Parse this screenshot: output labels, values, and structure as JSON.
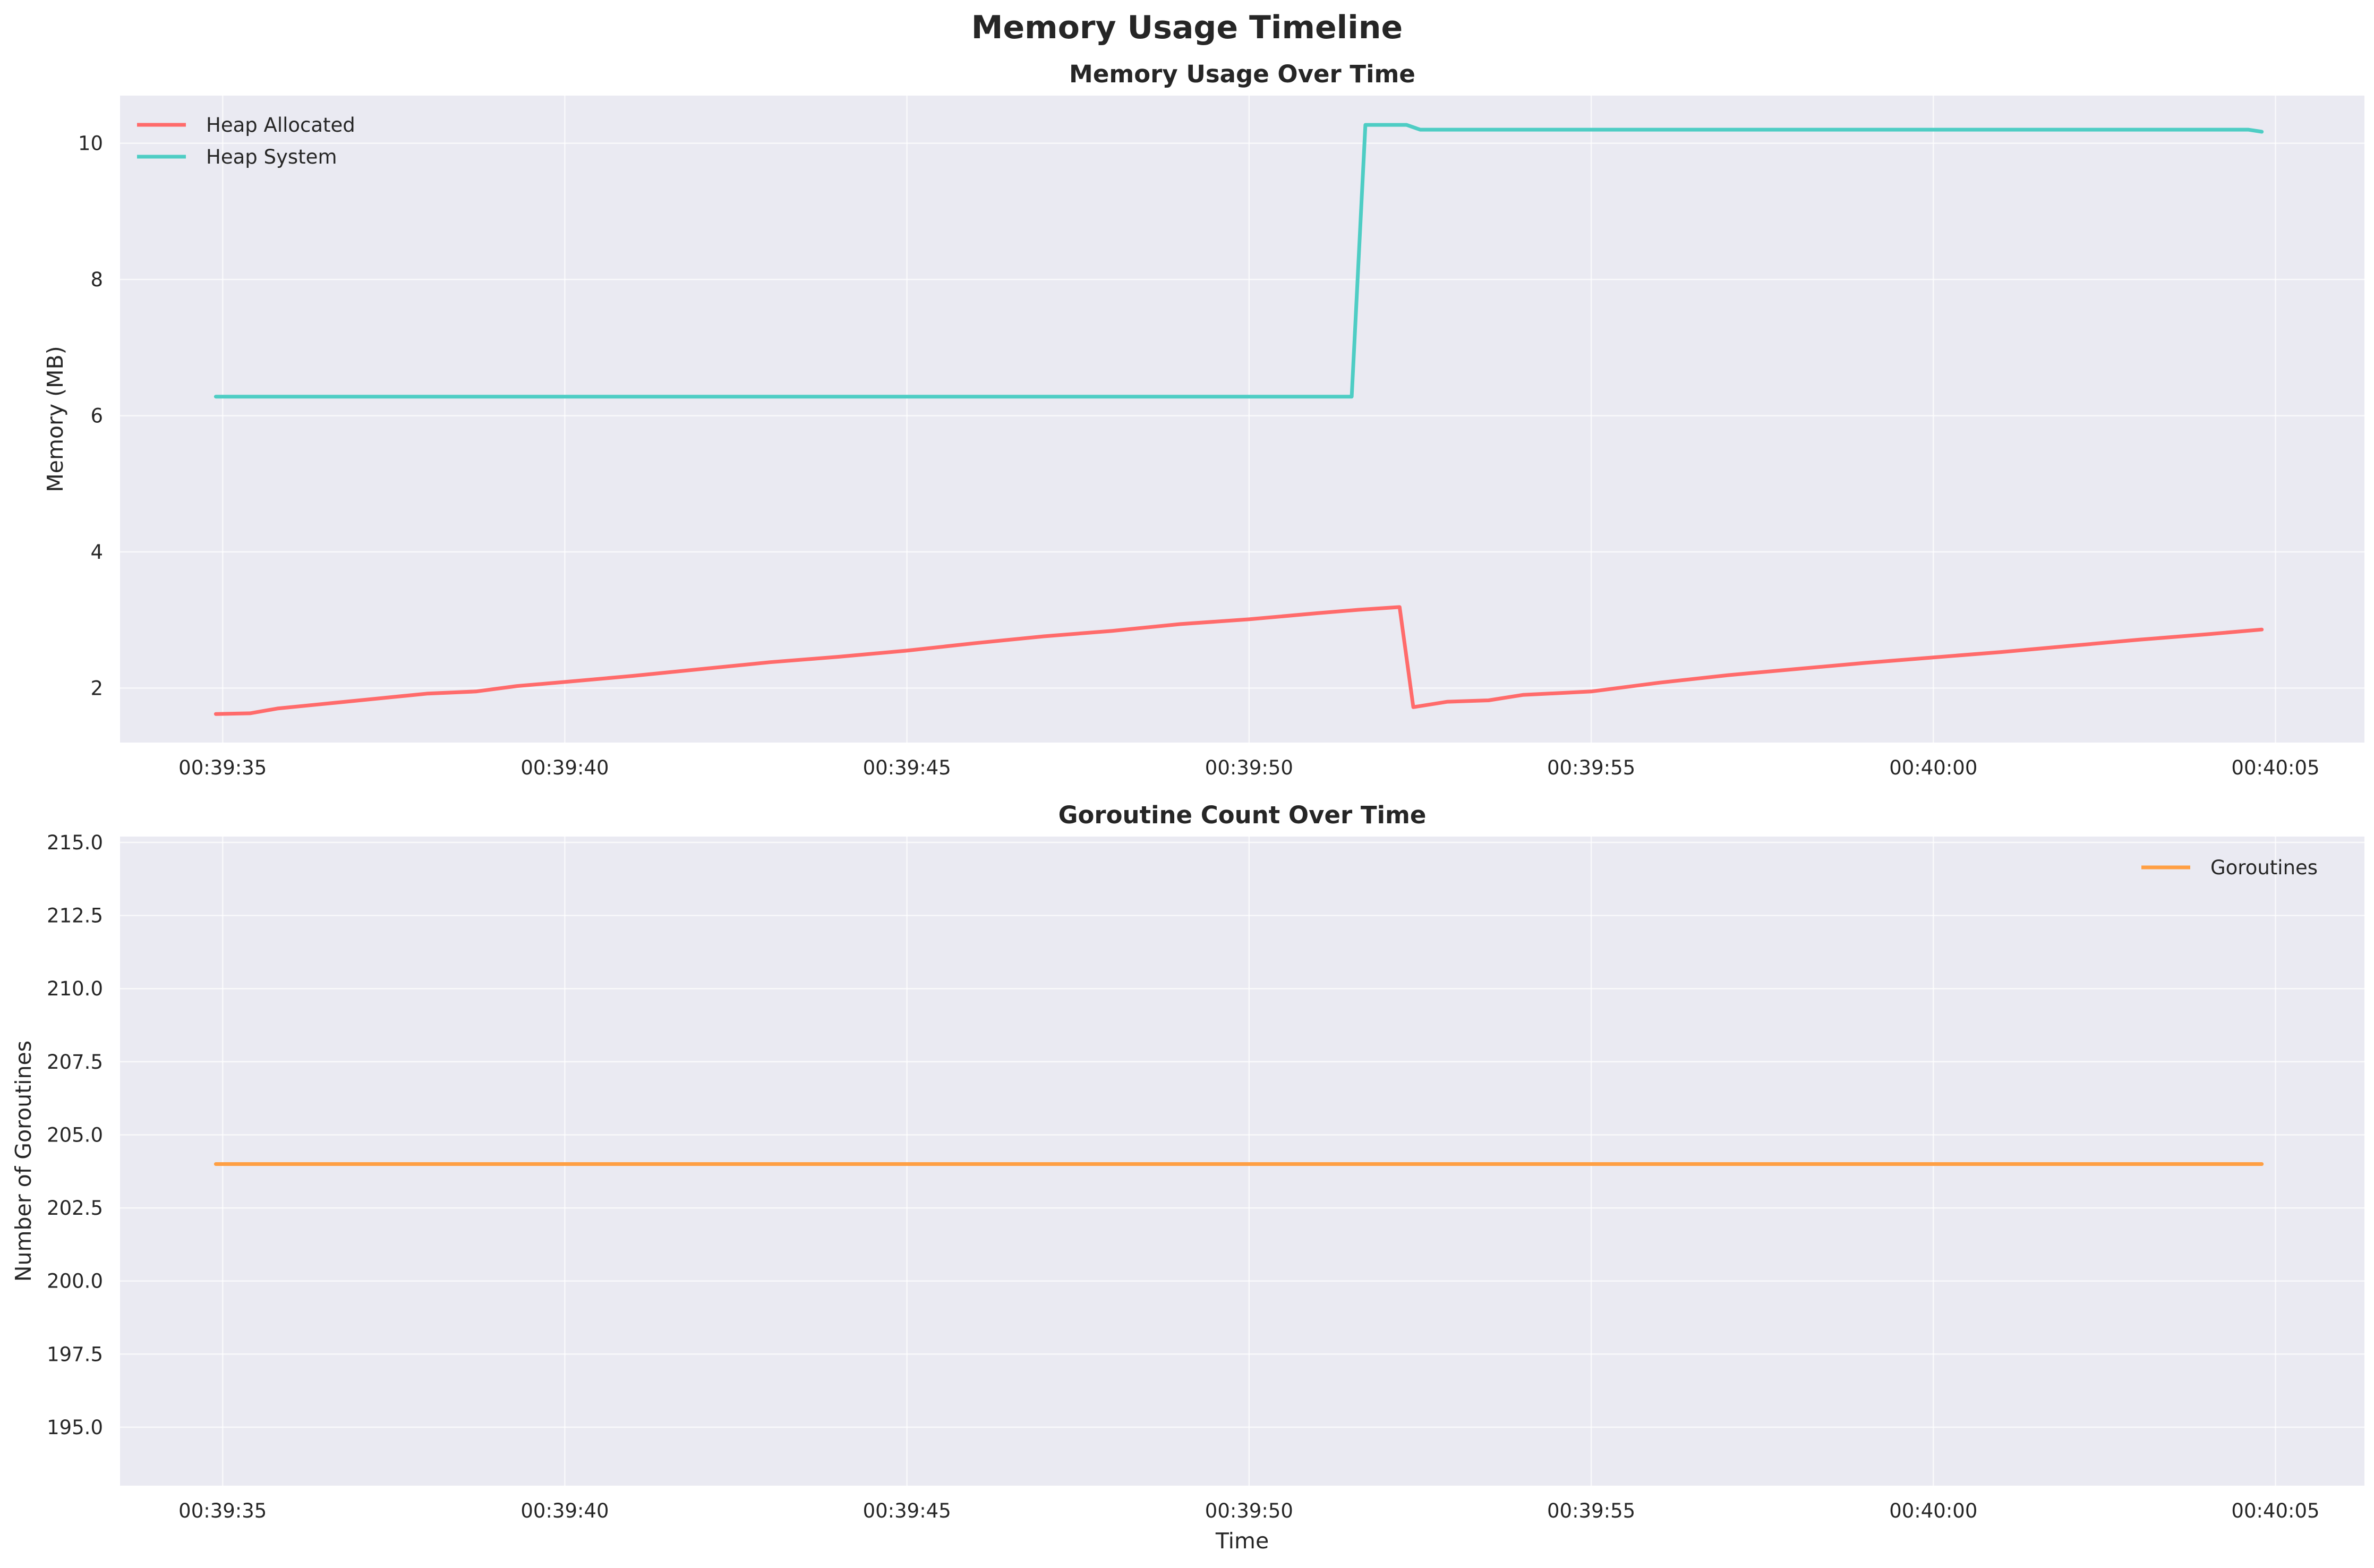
{
  "figure": {
    "title": "Memory Usage Timeline",
    "background": "#ffffff",
    "plot_background": "#eaeaf2",
    "grid_color": "#ffffff"
  },
  "chart_data": [
    {
      "type": "line",
      "title": "Memory Usage Over Time",
      "xlabel": "",
      "ylabel": "Memory (MB)",
      "x_type": "time",
      "xlim": [
        "00:39:33.5",
        "00:40:06.3"
      ],
      "ylim": [
        1.2,
        10.7
      ],
      "x_ticks": [
        "00:39:35",
        "00:39:40",
        "00:39:45",
        "00:39:50",
        "00:39:55",
        "00:40:00",
        "00:40:05"
      ],
      "y_ticks": [
        2,
        4,
        6,
        8,
        10
      ],
      "y_tick_labels": [
        "2",
        "4",
        "6",
        "8",
        "10"
      ],
      "grid": true,
      "legend": {
        "position": "top-left"
      },
      "series": [
        {
          "name": "Heap Allocated",
          "color": "#ff6b6b",
          "points": [
            [
              "00:39:34.9",
              1.62
            ],
            [
              "00:39:35.4",
              1.63
            ],
            [
              "00:39:35.8",
              1.7
            ],
            [
              "00:39:36.4",
              1.76
            ],
            [
              "00:39:37.0",
              1.82
            ],
            [
              "00:39:38.0",
              1.92
            ],
            [
              "00:39:38.7",
              1.95
            ],
            [
              "00:39:39.3",
              2.03
            ],
            [
              "00:39:40.0",
              2.09
            ],
            [
              "00:39:41.0",
              2.18
            ],
            [
              "00:39:42.0",
              2.28
            ],
            [
              "00:39:43.0",
              2.38
            ],
            [
              "00:39:44.0",
              2.46
            ],
            [
              "00:39:45.0",
              2.55
            ],
            [
              "00:39:46.0",
              2.66
            ],
            [
              "00:39:47.0",
              2.76
            ],
            [
              "00:39:48.0",
              2.84
            ],
            [
              "00:39:49.0",
              2.94
            ],
            [
              "00:39:50.0",
              3.01
            ],
            [
              "00:39:51.0",
              3.1
            ],
            [
              "00:39:51.6",
              3.15
            ],
            [
              "00:39:52.2",
              3.19
            ],
            [
              "00:39:52.4",
              1.72
            ],
            [
              "00:39:52.9",
              1.8
            ],
            [
              "00:39:53.5",
              1.82
            ],
            [
              "00:39:54.0",
              1.9
            ],
            [
              "00:39:55.0",
              1.95
            ],
            [
              "00:39:56.0",
              2.08
            ],
            [
              "00:39:57.0",
              2.19
            ],
            [
              "00:39:58.0",
              2.28
            ],
            [
              "00:39:59.0",
              2.37
            ],
            [
              "00:40:00.0",
              2.45
            ],
            [
              "00:40:01.0",
              2.53
            ],
            [
              "00:40:02.0",
              2.62
            ],
            [
              "00:40:03.0",
              2.71
            ],
            [
              "00:40:04.0",
              2.79
            ],
            [
              "00:40:04.8",
              2.86
            ]
          ]
        },
        {
          "name": "Heap System",
          "color": "#4ecdc4",
          "points": [
            [
              "00:39:34.9",
              6.28
            ],
            [
              "00:39:51.5",
              6.28
            ],
            [
              "00:39:51.7",
              10.27
            ],
            [
              "00:39:52.3",
              10.27
            ],
            [
              "00:39:52.5",
              10.2
            ],
            [
              "00:40:04.6",
              10.2
            ],
            [
              "00:40:04.8",
              10.17
            ]
          ]
        }
      ]
    },
    {
      "type": "line",
      "title": "Goroutine Count Over Time",
      "xlabel": "Time",
      "ylabel": "Number of Goroutines",
      "x_type": "time",
      "xlim": [
        "00:39:33.5",
        "00:40:06.3"
      ],
      "ylim": [
        193.0,
        215.2
      ],
      "x_ticks": [
        "00:39:35",
        "00:39:40",
        "00:39:45",
        "00:39:50",
        "00:39:55",
        "00:40:00",
        "00:40:05"
      ],
      "y_ticks": [
        195.0,
        197.5,
        200.0,
        202.5,
        205.0,
        207.5,
        210.0,
        212.5,
        215.0
      ],
      "y_tick_labels": [
        "195.0",
        "197.5",
        "200.0",
        "202.5",
        "205.0",
        "207.5",
        "210.0",
        "212.5",
        "215.0"
      ],
      "grid": true,
      "legend": {
        "position": "top-right"
      },
      "series": [
        {
          "name": "Goroutines",
          "color": "#ff9f43",
          "points": [
            [
              "00:39:34.9",
              204
            ],
            [
              "00:40:04.8",
              204
            ]
          ]
        }
      ]
    }
  ]
}
